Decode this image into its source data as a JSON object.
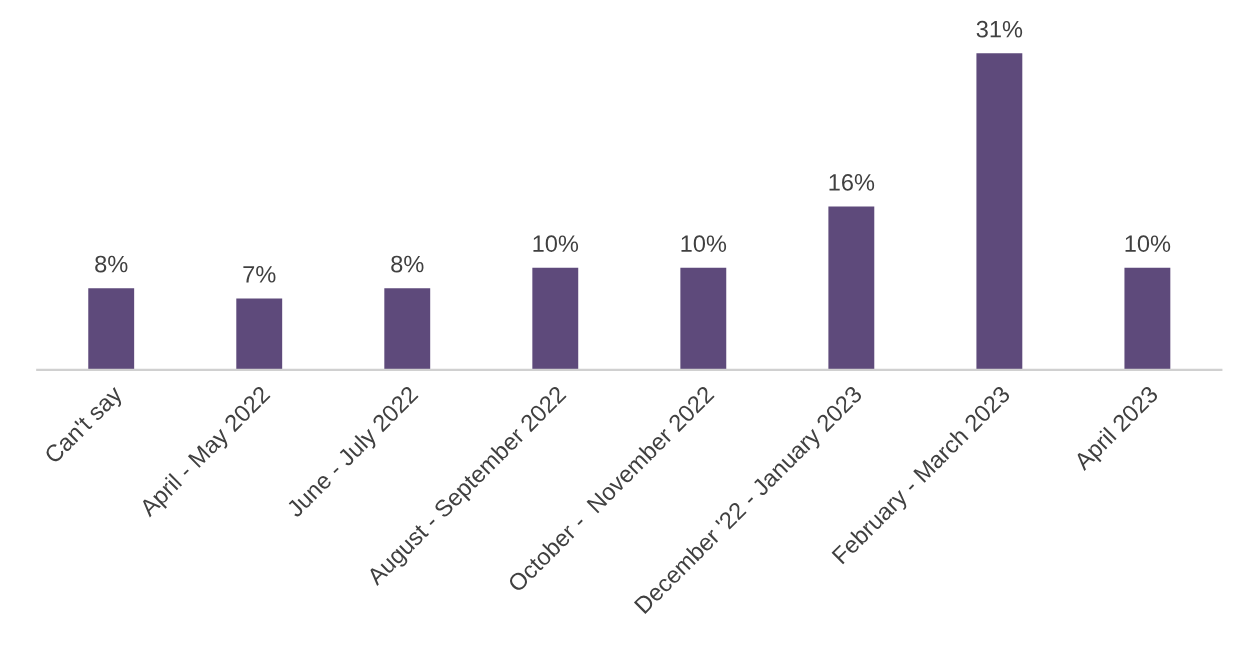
{
  "chart_data": {
    "type": "bar",
    "categories": [
      "Can't say",
      "April - May 2022",
      "June - July 2022",
      "August - September 2022",
      "October -  November 2022",
      "December '22 - January 2023",
      "February - March 2023",
      "April 2023"
    ],
    "values": [
      8,
      7,
      8,
      10,
      10,
      16,
      31,
      10
    ],
    "value_labels": [
      "8%",
      "7%",
      "8%",
      "10%",
      "10%",
      "16%",
      "31%",
      "10%"
    ],
    "color": "#5e4a7b",
    "tick_labels": "x",
    "grid": false,
    "legend": false
  }
}
